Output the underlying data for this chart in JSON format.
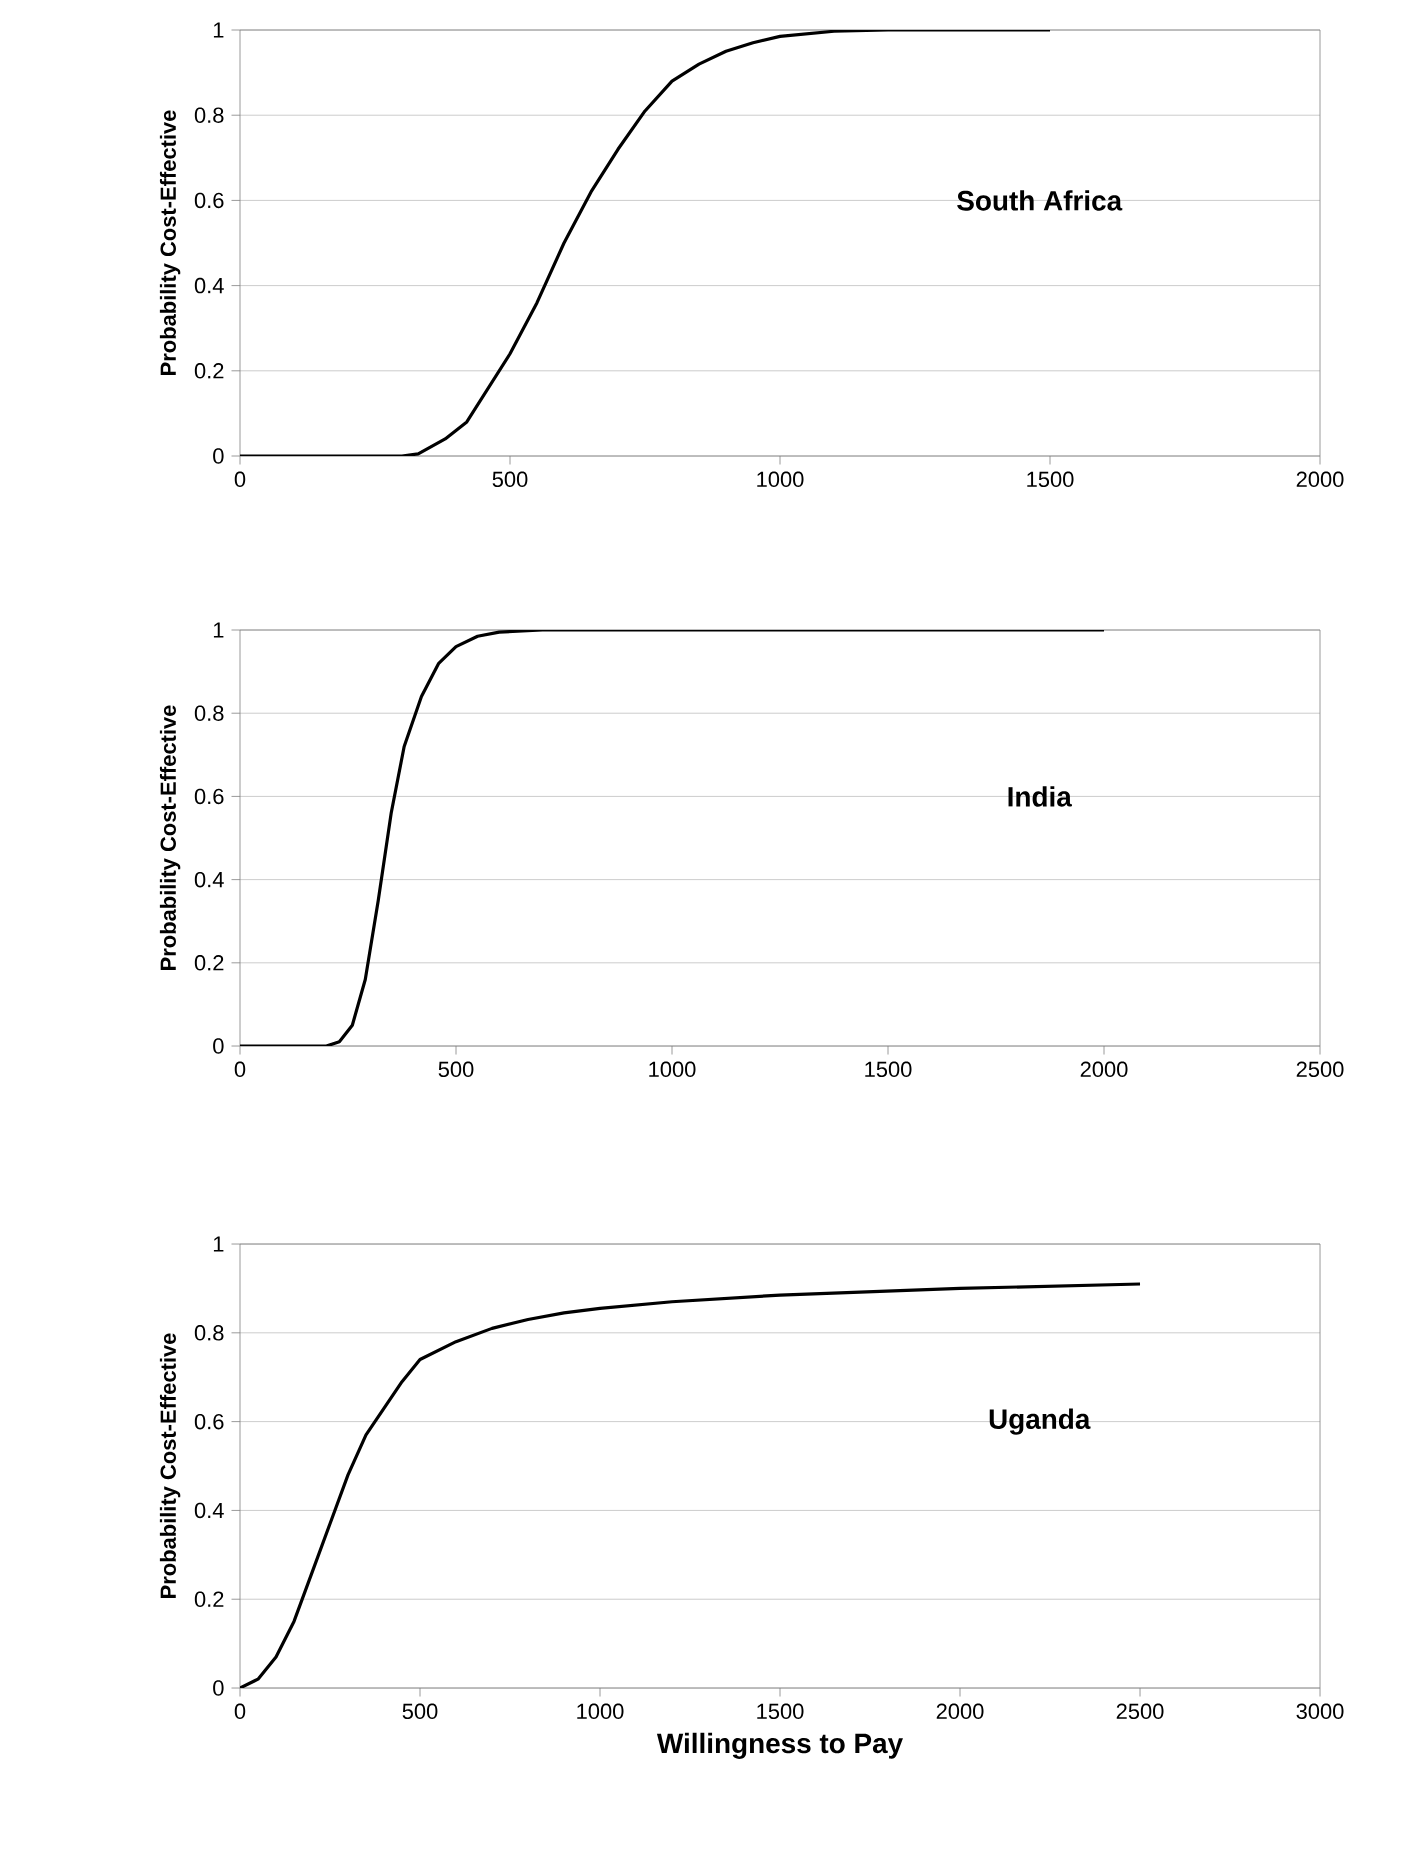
{
  "chart_data": [
    {
      "type": "line",
      "ylabel": "Probability Cost-Effective",
      "annotations": [
        "South Africa"
      ],
      "grid": "y",
      "xlim": [
        0,
        2000
      ],
      "xticks": [
        0,
        500,
        1000,
        1500,
        2000
      ],
      "ylim": [
        0,
        1
      ],
      "yticks": [
        0,
        0.2,
        0.4,
        0.6,
        0.8,
        1
      ],
      "series": [
        {
          "color": "#000000",
          "x": [
            0,
            300,
            330,
            380,
            420,
            460,
            500,
            550,
            600,
            650,
            700,
            750,
            800,
            850,
            900,
            950,
            1000,
            1100,
            1200,
            1500
          ],
          "values": [
            0,
            0,
            0.005,
            0.04,
            0.08,
            0.16,
            0.24,
            0.36,
            0.5,
            0.62,
            0.72,
            0.81,
            0.88,
            0.92,
            0.95,
            0.97,
            0.985,
            0.997,
            1,
            1
          ]
        }
      ]
    },
    {
      "type": "line",
      "ylabel": "Probability Cost-Effective",
      "annotations": [
        "India"
      ],
      "grid": "y",
      "xlim": [
        0,
        2500
      ],
      "xticks": [
        0,
        500,
        1000,
        1500,
        2000,
        2500
      ],
      "ylim": [
        0,
        1
      ],
      "yticks": [
        0,
        0.2,
        0.4,
        0.6,
        0.8,
        1
      ],
      "series": [
        {
          "color": "#000000",
          "x": [
            0,
            200,
            230,
            260,
            290,
            320,
            350,
            380,
            420,
            460,
            500,
            550,
            600,
            700,
            2000
          ],
          "values": [
            0,
            0,
            0.01,
            0.05,
            0.16,
            0.35,
            0.56,
            0.72,
            0.84,
            0.92,
            0.96,
            0.985,
            0.995,
            1,
            1
          ]
        }
      ]
    },
    {
      "type": "line",
      "xlabel": "Willingness to Pay",
      "ylabel": "Probability Cost-Effective",
      "annotations": [
        "Uganda"
      ],
      "grid": "y",
      "xlim": [
        0,
        3000
      ],
      "xticks": [
        0,
        500,
        1000,
        1500,
        2000,
        2500,
        3000
      ],
      "ylim": [
        0,
        1
      ],
      "yticks": [
        0,
        0.2,
        0.4,
        0.6,
        0.8,
        1
      ],
      "series": [
        {
          "color": "#000000",
          "x": [
            0,
            50,
            100,
            150,
            200,
            250,
            300,
            350,
            400,
            450,
            500,
            600,
            700,
            800,
            900,
            1000,
            1200,
            1500,
            2000,
            2500
          ],
          "values": [
            0,
            0.02,
            0.07,
            0.15,
            0.26,
            0.37,
            0.48,
            0.57,
            0.63,
            0.69,
            0.74,
            0.78,
            0.81,
            0.83,
            0.845,
            0.855,
            0.87,
            0.885,
            0.9,
            0.91
          ]
        }
      ]
    }
  ]
}
